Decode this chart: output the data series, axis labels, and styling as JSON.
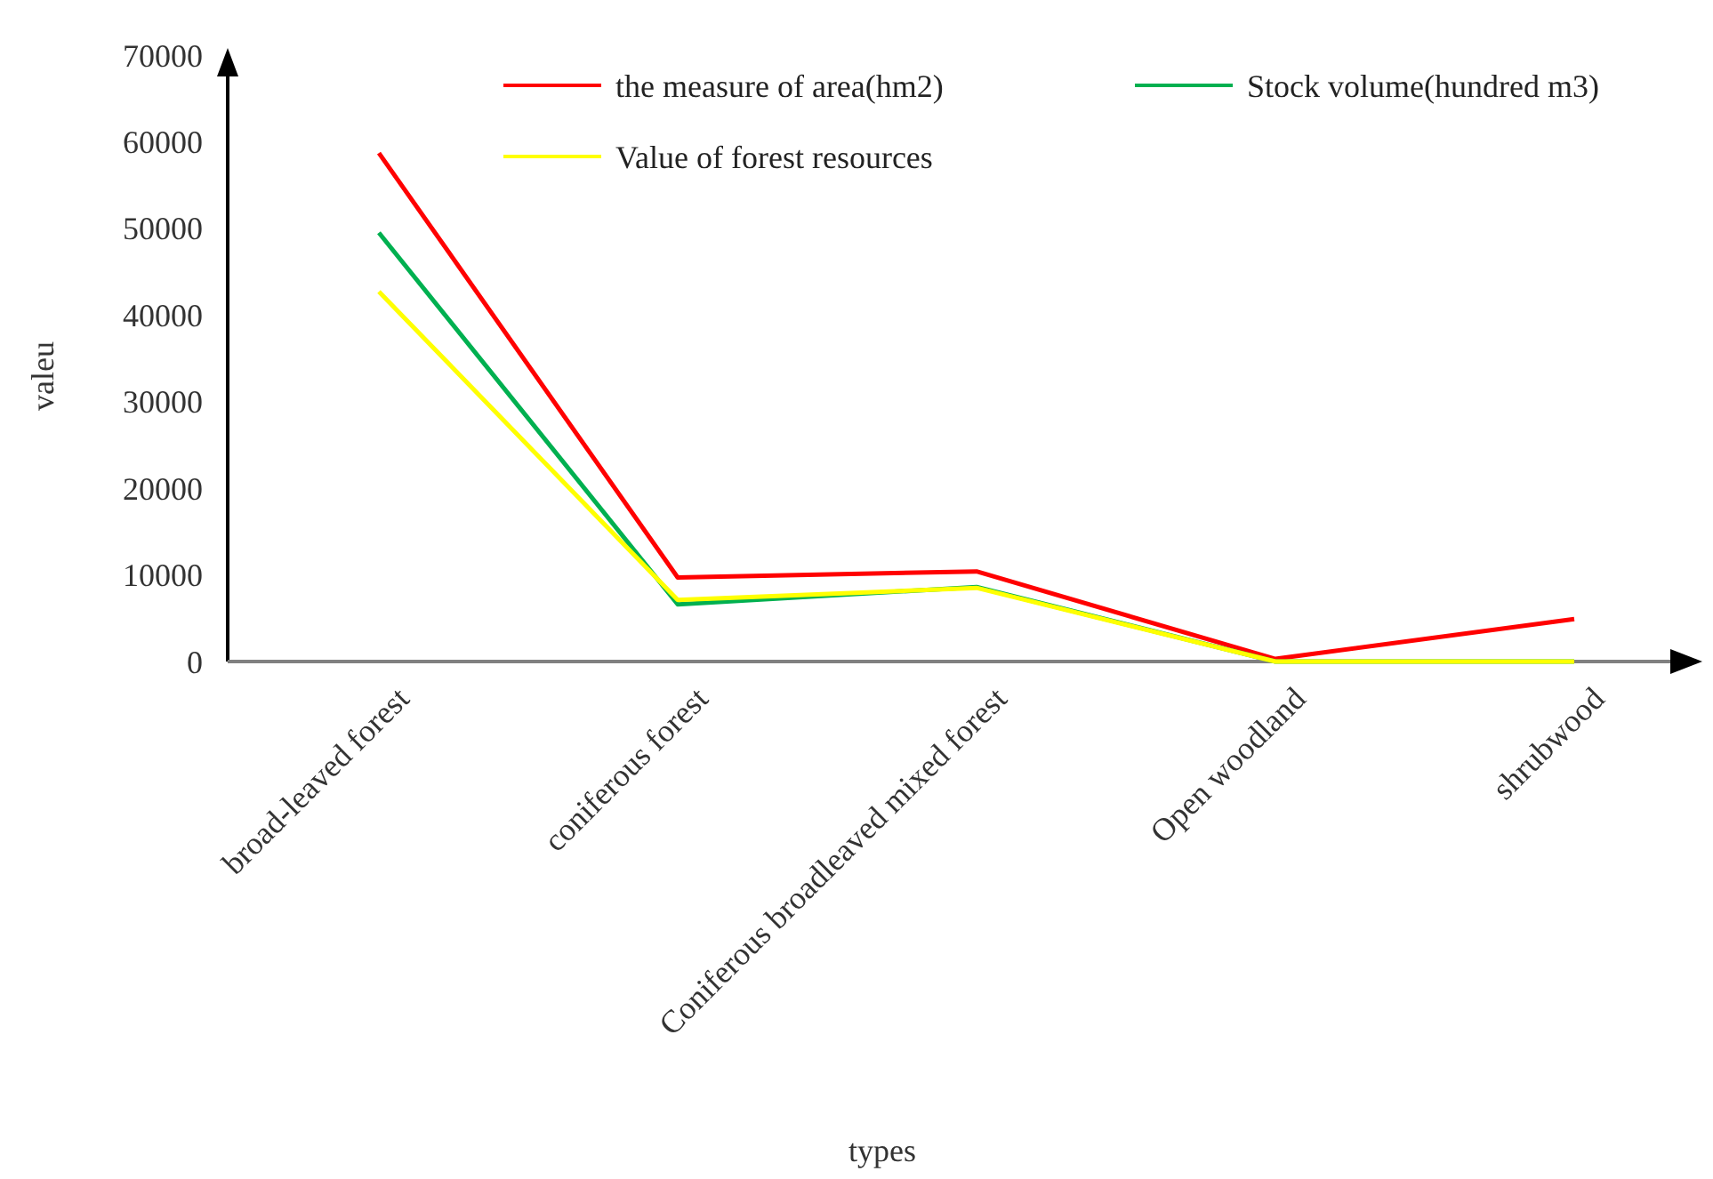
{
  "chart_data": {
    "type": "line",
    "xlabel": "types",
    "ylabel": "valeu",
    "categories": [
      "broad-leaved forest",
      "coniferous forest",
      "Coniferous broadleaved mixed forest",
      "Open woodland",
      "shrubwood"
    ],
    "series": [
      {
        "name": "the measure of area(hm2)",
        "color": "#ff0000",
        "values": [
          58700,
          9700,
          10400,
          300,
          4900
        ]
      },
      {
        "name": "Stock volume(hundred m3)",
        "color": "#00b050",
        "values": [
          49500,
          6600,
          8600,
          0,
          0
        ]
      },
      {
        "name": "Value of forest resources",
        "color": "#ffff00",
        "values": [
          42700,
          7100,
          8500,
          0,
          0
        ]
      }
    ],
    "ylim": [
      0,
      70000
    ],
    "yticks": [
      0,
      10000,
      20000,
      30000,
      40000,
      50000,
      60000,
      70000
    ],
    "grid": false,
    "legend": "top right",
    "marker": "none",
    "line_style": "solid"
  }
}
